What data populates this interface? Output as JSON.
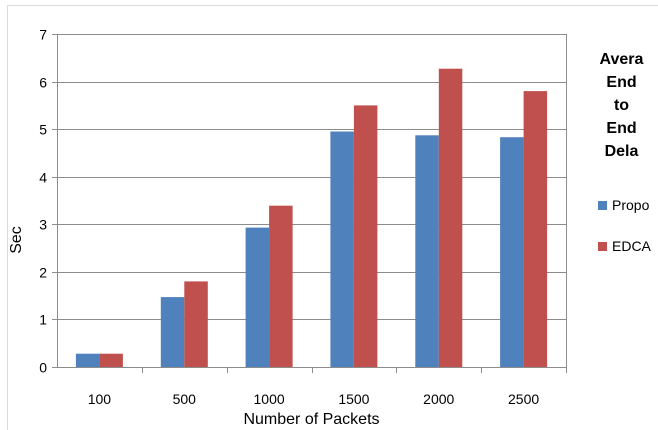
{
  "chart_data": {
    "type": "bar",
    "categories": [
      "100",
      "500",
      "1000",
      "1500",
      "2000",
      "2500"
    ],
    "series": [
      {
        "name": "Propo",
        "color": "#4f81bd",
        "values": [
          0.28,
          1.47,
          2.93,
          4.95,
          4.87,
          4.83
        ]
      },
      {
        "name": "EDCA",
        "color": "#c0504d",
        "values": [
          0.28,
          1.8,
          3.39,
          5.5,
          6.27,
          5.8
        ]
      }
    ],
    "title": "",
    "legend_title": "Avera\nEnd\nto\nEnd\nDela",
    "xlabel": "Number of Packets",
    "ylabel": "Sec",
    "ylim": [
      0,
      7
    ],
    "yticks": [
      "0",
      "1",
      "2",
      "3",
      "4",
      "5",
      "6",
      "7"
    ],
    "grid": true,
    "legend_position": "right"
  }
}
